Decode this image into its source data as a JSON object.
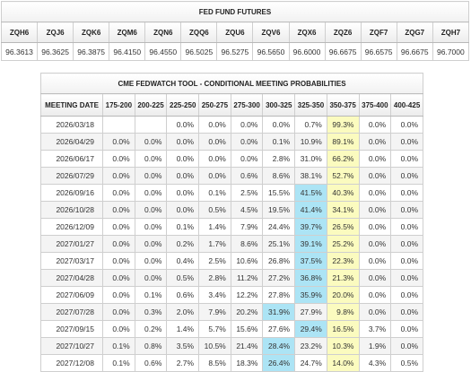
{
  "futures": {
    "title": "FED FUND FUTURES",
    "contracts": [
      "ZQH6",
      "ZQJ6",
      "ZQK6",
      "ZQM6",
      "ZQN6",
      "ZQQ6",
      "ZQU6",
      "ZQV6",
      "ZQX6",
      "ZQZ6",
      "ZQF7",
      "ZQG7",
      "ZQH7"
    ],
    "prices": [
      "96.3613",
      "96.3625",
      "96.3875",
      "96.4150",
      "96.4550",
      "96.5025",
      "96.5275",
      "96.5650",
      "96.6000",
      "96.6675",
      "96.6575",
      "96.6675",
      "96.7000"
    ]
  },
  "fedwatch": {
    "title": "CME FEDWATCH TOOL - CONDITIONAL MEETING PROBABILITIES",
    "date_header": "MEETING DATE",
    "ranges": [
      "175-200",
      "200-225",
      "225-250",
      "250-275",
      "275-300",
      "300-325",
      "325-350",
      "350-375",
      "375-400",
      "400-425"
    ],
    "highlight_colors": {
      "current_range": "#ace4f5",
      "most_likely": "#fbfbbf"
    },
    "rows": [
      {
        "date": "2026/03/18",
        "values": [
          "",
          "",
          "0.0%",
          "0.0%",
          "0.0%",
          "0.0%",
          "0.7%",
          "99.3%",
          "0.0%",
          "0.0%"
        ],
        "max_col": -1,
        "cur_col": 7
      },
      {
        "date": "2026/04/29",
        "values": [
          "0.0%",
          "0.0%",
          "0.0%",
          "0.0%",
          "0.0%",
          "0.1%",
          "10.9%",
          "89.1%",
          "0.0%",
          "0.0%"
        ],
        "max_col": -1,
        "cur_col": 7
      },
      {
        "date": "2026/06/17",
        "values": [
          "0.0%",
          "0.0%",
          "0.0%",
          "0.0%",
          "0.0%",
          "2.8%",
          "31.0%",
          "66.2%",
          "0.0%",
          "0.0%"
        ],
        "max_col": -1,
        "cur_col": 7
      },
      {
        "date": "2026/07/29",
        "values": [
          "0.0%",
          "0.0%",
          "0.0%",
          "0.0%",
          "0.6%",
          "8.6%",
          "38.1%",
          "52.7%",
          "0.0%",
          "0.0%"
        ],
        "max_col": -1,
        "cur_col": 7
      },
      {
        "date": "2026/09/16",
        "values": [
          "0.0%",
          "0.0%",
          "0.0%",
          "0.1%",
          "2.5%",
          "15.5%",
          "41.5%",
          "40.3%",
          "0.0%",
          "0.0%"
        ],
        "max_col": 6,
        "cur_col": 7
      },
      {
        "date": "2026/10/28",
        "values": [
          "0.0%",
          "0.0%",
          "0.0%",
          "0.5%",
          "4.5%",
          "19.5%",
          "41.4%",
          "34.1%",
          "0.0%",
          "0.0%"
        ],
        "max_col": 6,
        "cur_col": 7
      },
      {
        "date": "2026/12/09",
        "values": [
          "0.0%",
          "0.0%",
          "0.1%",
          "1.4%",
          "7.9%",
          "24.4%",
          "39.7%",
          "26.5%",
          "0.0%",
          "0.0%"
        ],
        "max_col": 6,
        "cur_col": 7
      },
      {
        "date": "2027/01/27",
        "values": [
          "0.0%",
          "0.0%",
          "0.2%",
          "1.7%",
          "8.6%",
          "25.1%",
          "39.1%",
          "25.2%",
          "0.0%",
          "0.0%"
        ],
        "max_col": 6,
        "cur_col": 7
      },
      {
        "date": "2027/03/17",
        "values": [
          "0.0%",
          "0.0%",
          "0.4%",
          "2.5%",
          "10.6%",
          "26.8%",
          "37.5%",
          "22.3%",
          "0.0%",
          "0.0%"
        ],
        "max_col": 6,
        "cur_col": 7
      },
      {
        "date": "2027/04/28",
        "values": [
          "0.0%",
          "0.0%",
          "0.5%",
          "2.8%",
          "11.2%",
          "27.2%",
          "36.8%",
          "21.3%",
          "0.0%",
          "0.0%"
        ],
        "max_col": 6,
        "cur_col": 7
      },
      {
        "date": "2027/06/09",
        "values": [
          "0.0%",
          "0.1%",
          "0.6%",
          "3.4%",
          "12.2%",
          "27.8%",
          "35.9%",
          "20.0%",
          "0.0%",
          "0.0%"
        ],
        "max_col": 6,
        "cur_col": 7
      },
      {
        "date": "2027/07/28",
        "values": [
          "0.0%",
          "0.3%",
          "2.0%",
          "7.9%",
          "20.2%",
          "31.9%",
          "27.9%",
          "9.8%",
          "0.0%",
          "0.0%"
        ],
        "max_col": 5,
        "cur_col": 7
      },
      {
        "date": "2027/09/15",
        "values": [
          "0.0%",
          "0.2%",
          "1.4%",
          "5.7%",
          "15.6%",
          "27.6%",
          "29.4%",
          "16.5%",
          "3.7%",
          "0.0%"
        ],
        "max_col": 6,
        "cur_col": 7
      },
      {
        "date": "2027/10/27",
        "values": [
          "0.1%",
          "0.8%",
          "3.5%",
          "10.5%",
          "21.4%",
          "28.4%",
          "23.2%",
          "10.3%",
          "1.9%",
          "0.0%"
        ],
        "max_col": 5,
        "cur_col": 7
      },
      {
        "date": "2027/12/08",
        "values": [
          "0.1%",
          "0.6%",
          "2.7%",
          "8.5%",
          "18.3%",
          "26.4%",
          "24.7%",
          "14.0%",
          "4.3%",
          "0.5%"
        ],
        "max_col": 5,
        "cur_col": 7
      }
    ]
  }
}
